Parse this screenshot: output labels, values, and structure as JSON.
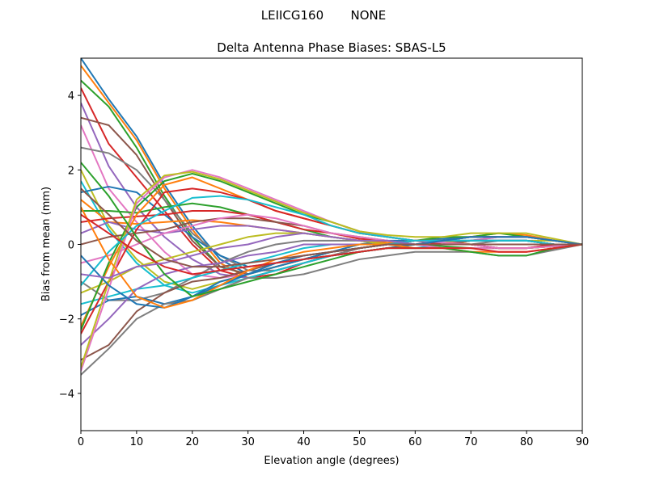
{
  "chart_data": {
    "type": "line",
    "suptitle": "LEIICG160       NONE",
    "title": "Delta Antenna Phase Biases: SBAS-L5",
    "xlabel": "Elevation angle (degrees)",
    "ylabel": "Bias from mean (mm)",
    "xlim": [
      0,
      90
    ],
    "ylim": [
      -5,
      5
    ],
    "xticks": [
      "0",
      "10",
      "20",
      "30",
      "40",
      "50",
      "60",
      "70",
      "80",
      "90"
    ],
    "yticks": [
      "−4",
      "−2",
      "0",
      "2",
      "4"
    ],
    "x": [
      0,
      5,
      10,
      15,
      20,
      25,
      30,
      35,
      40,
      45,
      50,
      55,
      60,
      65,
      70,
      75,
      80,
      85,
      90
    ],
    "colors": [
      "#1f77b4",
      "#ff7f0e",
      "#2ca02c",
      "#d62728",
      "#9467bd",
      "#8c564b",
      "#e377c2",
      "#7f7f7f",
      "#bcbd22",
      "#17becf"
    ],
    "series": [
      {
        "values": [
          5.0,
          3.9,
          2.9,
          1.6,
          0.5,
          -0.4,
          -0.8,
          -0.6,
          -0.4,
          -0.2,
          0.0,
          0.1,
          0.1,
          0.15,
          0.2,
          0.2,
          0.2,
          0.1,
          0
        ]
      },
      {
        "values": [
          4.8,
          3.8,
          2.8,
          1.5,
          0.4,
          -0.5,
          -0.9,
          -0.7,
          -0.5,
          -0.3,
          -0.1,
          0.0,
          0.1,
          0.1,
          0.2,
          0.3,
          0.25,
          0.1,
          0
        ]
      },
      {
        "values": [
          4.4,
          3.7,
          2.6,
          1.3,
          0.2,
          -0.6,
          -0.8,
          -0.6,
          -0.4,
          -0.2,
          -0.1,
          0.0,
          0.1,
          0.2,
          0.2,
          0.3,
          0.2,
          0.1,
          0
        ]
      },
      {
        "values": [
          4.2,
          2.7,
          1.8,
          0.9,
          0.0,
          -0.7,
          -0.9,
          -0.8,
          -0.5,
          -0.3,
          -0.1,
          0,
          0.1,
          0.1,
          0.2,
          0.2,
          0.2,
          0.1,
          0
        ]
      },
      {
        "values": [
          3.8,
          2.1,
          1.0,
          0.2,
          -0.4,
          -0.8,
          -0.9,
          -0.7,
          -0.5,
          -0.3,
          -0.2,
          -0.1,
          0,
          0.1,
          0.1,
          0.2,
          0.2,
          0.1,
          0
        ]
      },
      {
        "values": [
          3.4,
          3.2,
          2.4,
          1.2,
          0.1,
          -0.6,
          -0.8,
          -0.6,
          -0.4,
          -0.2,
          -0.1,
          0,
          0.1,
          0.1,
          0.2,
          0.2,
          0.2,
          0.1,
          0
        ]
      },
      {
        "values": [
          3.2,
          1.5,
          0.6,
          -0.2,
          -0.8,
          -0.9,
          -0.8,
          -0.6,
          -0.4,
          -0.3,
          -0.2,
          -0.1,
          0,
          0,
          0.1,
          0.2,
          0.2,
          0.1,
          0
        ]
      },
      {
        "values": [
          2.6,
          2.45,
          2.0,
          1.2,
          0.3,
          -0.3,
          -0.7,
          -0.7,
          -0.5,
          -0.3,
          -0.1,
          0,
          0.1,
          0.1,
          0.2,
          0.2,
          0.2,
          0.1,
          0
        ]
      },
      {
        "values": [
          2.0,
          0.5,
          -0.4,
          -1.0,
          -1.2,
          -1.0,
          -0.8,
          -0.6,
          -0.4,
          -0.3,
          -0.2,
          -0.1,
          0,
          0,
          0.1,
          0.1,
          0.1,
          0.1,
          0
        ]
      },
      {
        "values": [
          1.7,
          0.4,
          -0.5,
          -1.1,
          -1.3,
          -1.1,
          -0.9,
          -0.7,
          -0.5,
          -0.3,
          -0.2,
          -0.1,
          -0.1,
          0,
          0.1,
          0.1,
          0.1,
          0,
          0
        ]
      },
      {
        "values": [
          1.4,
          1.55,
          1.4,
          0.8,
          0.2,
          -0.3,
          -0.6,
          -0.5,
          -0.4,
          -0.3,
          -0.2,
          -0.1,
          0,
          0,
          0.1,
          0.1,
          0.1,
          0,
          0
        ]
      },
      {
        "values": [
          1.2,
          0.6,
          0.55,
          0.6,
          0.65,
          0.6,
          0.5,
          0.4,
          0.3,
          0.2,
          0.1,
          0.05,
          0,
          0,
          0,
          0,
          0,
          0,
          0
        ]
      },
      {
        "values": [
          0.9,
          0.9,
          0.85,
          1.0,
          1.1,
          1.0,
          0.8,
          0.6,
          0.4,
          0.2,
          0.1,
          0,
          0,
          -0.05,
          -0.1,
          -0.1,
          -0.1,
          -0.05,
          0
        ]
      },
      {
        "values": [
          0.6,
          0.7,
          0.75,
          0.8,
          0.9,
          0.9,
          0.8,
          0.6,
          0.4,
          0.3,
          0.15,
          0.1,
          0,
          0,
          0,
          -0.1,
          -0.1,
          0,
          0
        ]
      },
      {
        "values": [
          0.3,
          0.6,
          0.4,
          0.3,
          0.4,
          0.5,
          0.5,
          0.4,
          0.3,
          0.2,
          0.1,
          0,
          0,
          0,
          0,
          0,
          0,
          0,
          0
        ]
      },
      {
        "values": [
          0.0,
          0.2,
          0.3,
          0.4,
          0.6,
          0.7,
          0.7,
          0.6,
          0.5,
          0.3,
          0.2,
          0.1,
          0,
          0,
          0,
          0,
          0,
          0,
          0
        ]
      },
      {
        "values": [
          -0.5,
          -0.3,
          0.0,
          0.3,
          0.5,
          0.7,
          0.8,
          0.7,
          0.5,
          0.3,
          0.2,
          0.1,
          0,
          -0.1,
          -0.1,
          -0.1,
          -0.1,
          0,
          0
        ]
      },
      {
        "values": [
          -1.0,
          -1.5,
          -1.5,
          -1.3,
          -0.9,
          -0.5,
          -0.2,
          0.0,
          0.1,
          0.1,
          0.1,
          0,
          0,
          0,
          0,
          0.1,
          0.1,
          0,
          0
        ]
      },
      {
        "values": [
          -1.3,
          -1.0,
          -0.6,
          -0.4,
          -0.2,
          0,
          0.2,
          0.3,
          0.3,
          0.2,
          0.1,
          0,
          0,
          0,
          0,
          0,
          0,
          0,
          0
        ]
      },
      {
        "values": [
          -1.6,
          -1.4,
          -1.2,
          -1.1,
          -0.9,
          -0.7,
          -0.5,
          -0.3,
          -0.1,
          0,
          0,
          0,
          0.1,
          0.1,
          0.1,
          0.1,
          0.1,
          0,
          0
        ]
      },
      {
        "values": [
          -1.9,
          -1.5,
          -1.4,
          -1.6,
          -1.4,
          -1.1,
          -0.8,
          -0.6,
          -0.4,
          -0.2,
          -0.1,
          0,
          0,
          0.1,
          0.1,
          0.1,
          0.1,
          0,
          0
        ]
      },
      {
        "values": [
          -2.2,
          -0.6,
          0.8,
          1.6,
          1.8,
          1.5,
          1.2,
          0.9,
          0.7,
          0.5,
          0.3,
          0.2,
          0.1,
          0.1,
          0,
          -0.1,
          -0.1,
          -0.05,
          0
        ]
      },
      {
        "values": [
          -2.3,
          -0.5,
          1.0,
          1.7,
          1.9,
          1.7,
          1.4,
          1.1,
          0.8,
          0.6,
          0.35,
          0.2,
          0.1,
          0.05,
          0,
          -0.1,
          -0.1,
          -0.05,
          0
        ]
      },
      {
        "values": [
          -2.4,
          -1.0,
          0.4,
          1.4,
          1.5,
          1.4,
          1.2,
          0.9,
          0.7,
          0.5,
          0.3,
          0.2,
          0.1,
          0,
          0,
          -0.1,
          -0.1,
          0,
          0
        ]
      },
      {
        "values": [
          -2.7,
          -2.0,
          -1.2,
          -0.8,
          -0.6,
          -0.5,
          -0.3,
          -0.2,
          0,
          0,
          0,
          0,
          0,
          0,
          0,
          0,
          0,
          0,
          0
        ]
      },
      {
        "values": [
          -3.1,
          -2.7,
          -1.8,
          -1.3,
          -1.0,
          -0.9,
          -0.7,
          -0.5,
          -0.3,
          -0.2,
          -0.1,
          0,
          0,
          0,
          0.1,
          0.1,
          0.1,
          0,
          0
        ]
      },
      {
        "values": [
          -3.4,
          -1.2,
          1.1,
          1.8,
          2.0,
          1.8,
          1.5,
          1.2,
          0.9,
          0.6,
          0.35,
          0.2,
          0.1,
          0.05,
          0,
          -0.1,
          -0.1,
          -0.05,
          0
        ]
      },
      {
        "values": [
          -3.5,
          -2.8,
          -2.0,
          -1.6,
          -1.5,
          -1.2,
          -0.9,
          -0.9,
          -0.8,
          -0.6,
          -0.4,
          -0.3,
          -0.2,
          -0.2,
          -0.2,
          -0.3,
          -0.3,
          -0.15,
          0
        ]
      },
      {
        "values": [
          -3.3,
          -1.0,
          1.2,
          1.85,
          1.95,
          1.75,
          1.45,
          1.15,
          0.85,
          0.6,
          0.35,
          0.25,
          0.2,
          0.2,
          0.3,
          0.3,
          0.3,
          0.15,
          0
        ]
      },
      {
        "values": [
          -1.1,
          -0.2,
          0.5,
          0.9,
          1.25,
          1.3,
          1.2,
          1.0,
          0.8,
          0.5,
          0.3,
          0.2,
          0.1,
          0.1,
          0.1,
          0.1,
          0.1,
          0,
          0
        ]
      },
      {
        "values": [
          -0.3,
          -1.1,
          -1.6,
          -1.7,
          -1.4,
          -1.0,
          -0.8,
          -0.5,
          -0.3,
          -0.2,
          -0.1,
          0,
          0,
          0.1,
          0.2,
          0.2,
          0.2,
          0.1,
          0
        ]
      },
      {
        "values": [
          1.0,
          -0.4,
          -1.4,
          -1.7,
          -1.5,
          -1.1,
          -0.7,
          -0.4,
          -0.2,
          -0.1,
          0,
          0,
          -0.1,
          -0.1,
          -0.2,
          -0.2,
          -0.2,
          -0.1,
          0
        ]
      },
      {
        "values": [
          2.2,
          1.3,
          0.2,
          -0.8,
          -1.4,
          -1.2,
          -1.0,
          -0.8,
          -0.6,
          -0.4,
          -0.2,
          -0.1,
          -0.1,
          -0.1,
          -0.2,
          -0.3,
          -0.3,
          -0.1,
          0
        ]
      },
      {
        "values": [
          0.8,
          0.3,
          -0.2,
          -0.6,
          -0.8,
          -0.7,
          -0.6,
          -0.5,
          -0.4,
          -0.3,
          -0.2,
          -0.1,
          -0.1,
          -0.1,
          -0.1,
          -0.2,
          -0.2,
          -0.1,
          0
        ]
      },
      {
        "values": [
          -0.8,
          -0.9,
          -0.6,
          -0.5,
          -0.3,
          -0.1,
          0.0,
          0.2,
          0.3,
          0.2,
          0.1,
          0.1,
          0,
          0,
          0,
          0,
          0,
          0,
          0
        ]
      },
      {
        "values": [
          1.5,
          0.8,
          0.1,
          -0.4,
          -0.6,
          -0.6,
          -0.5,
          -0.4,
          -0.3,
          -0.2,
          -0.1,
          0,
          0,
          0,
          0,
          0,
          0,
          0,
          0
        ]
      }
    ]
  }
}
